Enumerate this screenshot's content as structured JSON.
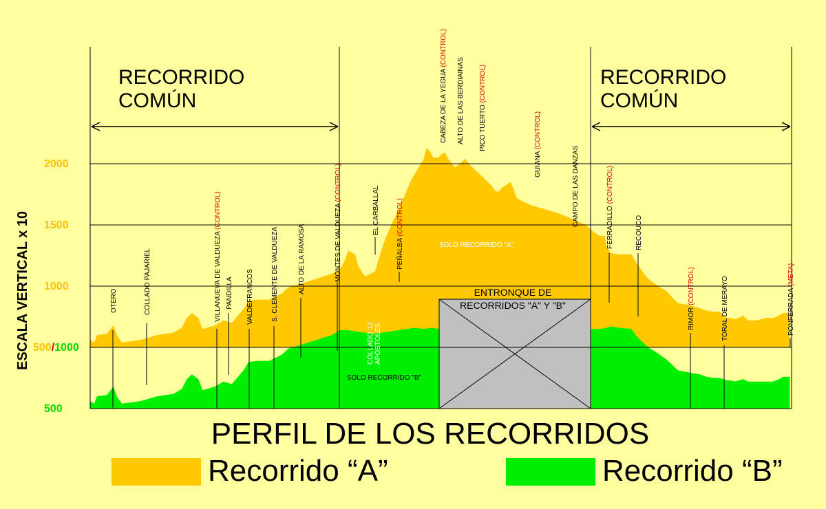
{
  "title": "PERFIL DE LOS RECORRIDOS",
  "ylabel": "ESCALA VERTICAL x 10",
  "section_common_1": "RECORRIDO COMÚN",
  "section_common_2": "RECORRIDO COMÚN",
  "center_labels": {
    "solo_a": "SOLO RECORRIDO \"A\"",
    "solo_b": "SOLO RECORRIDO \"B\"",
    "entronque_1": "ENTRONQUE DE",
    "entronque_2": "RECORRIDOS \"A\" Y \"B\"",
    "collado": [
      "COLLADO 12",
      "APÓSTOLES"
    ]
  },
  "ticks": [
    {
      "label": "2000",
      "color": "#FFC000"
    },
    {
      "label": "1500",
      "color": "#FFC000"
    },
    {
      "label": "1000",
      "color": "#FFC000"
    },
    {
      "label_a": "500",
      "sep": "/",
      "label_b": "1000",
      "color_a": "#FFC000",
      "color_sep": "#CC0000",
      "color_b": "#00DD00"
    },
    {
      "label": "500",
      "color": "#00DD00"
    }
  ],
  "legend": [
    {
      "label": "Recorrido “A”",
      "color": "#FFC800"
    },
    {
      "label": "Recorrido “B”",
      "color": "#00EE00"
    }
  ],
  "colors": {
    "route_a": "#FFC800",
    "route_b": "#00EE00",
    "entronque": "#C0C0C0",
    "control": "#E00000",
    "background": "#FFFFA0"
  },
  "points": [
    {
      "name": "OTERO",
      "note": ""
    },
    {
      "name": "COLLADO PAJARIEL",
      "note": ""
    },
    {
      "name": "VILLANUEVA DE VALDUEZA ",
      "note": "(CONTROL)"
    },
    {
      "name": "PANDILLA",
      "note": ""
    },
    {
      "name": "VALDEFRANCOS",
      "note": ""
    },
    {
      "name": "S. CLEMENTE DE VALDUEZA",
      "note": ""
    },
    {
      "name": "ALTO DE LA RAMOSA",
      "note": ""
    },
    {
      "name": "MONTES DE VALDUEZA ",
      "note": "(CONTROL)"
    },
    {
      "name": "EL CARBALLAL",
      "note": ""
    },
    {
      "name": "PEÑALBA ",
      "note": "(CONTROL)"
    },
    {
      "name": "CABEZA DE LA YEGUA ",
      "note": "(CONTROL)"
    },
    {
      "name": "ALTO DE LAS BERDIAINAS",
      "note": ""
    },
    {
      "name": "PICO TUERTO ",
      "note": "(CONTROL)"
    },
    {
      "name": "GUIANA ",
      "note": "(CONTROL)"
    },
    {
      "name": "CAMPO DE LAS DANZAS",
      "note": ""
    },
    {
      "name": "FERRADILLO ",
      "note": "(CONTROL)"
    },
    {
      "name": "RECOUCO",
      "note": ""
    },
    {
      "name": "RIMOR ",
      "note": "(CONTROL)"
    },
    {
      "name": "TORAL DE MERAYO",
      "note": ""
    },
    {
      "name": "PONFERRADA ",
      "note": "(META)"
    }
  ],
  "chart_data": {
    "type": "area",
    "title": "PERFIL DE LOS RECORRIDOS",
    "ylabel": "ESCALA VERTICAL x 10",
    "ylim_A": [
      500,
      2000
    ],
    "ylim_B_label": "500/1000",
    "series": [
      {
        "name": "Recorrido “A”",
        "values": [
          [
            0,
            560
          ],
          [
            5,
            540
          ],
          [
            8,
            600
          ],
          [
            20,
            610
          ],
          [
            28,
            680
          ],
          [
            32,
            600
          ],
          [
            38,
            540
          ],
          [
            60,
            560
          ],
          [
            80,
            600
          ],
          [
            100,
            620
          ],
          [
            110,
            660
          ],
          [
            116,
            740
          ],
          [
            122,
            780
          ],
          [
            130,
            740
          ],
          [
            135,
            650
          ],
          [
            150,
            680
          ],
          [
            160,
            720
          ],
          [
            170,
            700
          ],
          [
            180,
            780
          ],
          [
            185,
            820
          ],
          [
            190,
            880
          ],
          [
            200,
            890
          ],
          [
            215,
            890
          ],
          [
            230,
            940
          ],
          [
            238,
            990
          ],
          [
            248,
            1010
          ],
          [
            262,
            1040
          ],
          [
            272,
            1060
          ],
          [
            280,
            1080
          ],
          [
            290,
            1100
          ],
          [
            300,
            1140
          ],
          [
            305,
            1200
          ],
          [
            310,
            1290
          ],
          [
            318,
            1260
          ],
          [
            322,
            1160
          ],
          [
            330,
            1080
          ],
          [
            336,
            1100
          ],
          [
            342,
            1120
          ],
          [
            350,
            1300
          ],
          [
            355,
            1400
          ],
          [
            365,
            1550
          ],
          [
            375,
            1700
          ],
          [
            385,
            1860
          ],
          [
            395,
            1980
          ],
          [
            400,
            2030
          ],
          [
            404,
            2130
          ],
          [
            408,
            2100
          ],
          [
            412,
            2050
          ],
          [
            418,
            2050
          ],
          [
            422,
            2080
          ],
          [
            426,
            2090
          ],
          [
            430,
            2040
          ],
          [
            438,
            1970
          ],
          [
            444,
            2000
          ],
          [
            450,
            2040
          ],
          [
            456,
            1990
          ],
          [
            462,
            1950
          ],
          [
            470,
            1900
          ],
          [
            476,
            1860
          ],
          [
            482,
            1820
          ],
          [
            486,
            1780
          ],
          [
            490,
            1770
          ],
          [
            494,
            1800
          ],
          [
            500,
            1830
          ],
          [
            505,
            1850
          ],
          [
            508,
            1800
          ],
          [
            512,
            1720
          ],
          [
            520,
            1690
          ],
          [
            530,
            1660
          ],
          [
            545,
            1630
          ],
          [
            560,
            1600
          ],
          [
            575,
            1560
          ],
          [
            595,
            1500
          ],
          [
            605,
            1440
          ],
          [
            612,
            1410
          ],
          [
            618,
            1410
          ],
          [
            620,
            1320
          ],
          [
            625,
            1270
          ],
          [
            635,
            1260
          ],
          [
            650,
            1260
          ],
          [
            655,
            1200
          ],
          [
            662,
            1130
          ],
          [
            670,
            1060
          ],
          [
            682,
            1000
          ],
          [
            692,
            960
          ],
          [
            700,
            900
          ],
          [
            706,
            860
          ],
          [
            716,
            850
          ],
          [
            722,
            840
          ],
          [
            732,
            820
          ],
          [
            740,
            800
          ],
          [
            750,
            790
          ],
          [
            756,
            790
          ],
          [
            760,
            760
          ],
          [
            765,
            740
          ],
          [
            770,
            740
          ],
          [
            774,
            730
          ],
          [
            778,
            740
          ],
          [
            784,
            760
          ],
          [
            790,
            720
          ],
          [
            800,
            720
          ],
          [
            812,
            740
          ],
          [
            820,
            740
          ],
          [
            827,
            760
          ],
          [
            832,
            780
          ],
          [
            835,
            780
          ],
          [
            840,
            780
          ]
        ]
      },
      {
        "name": "Recorrido “B”",
        "values": [
          [
            0,
            560
          ],
          [
            5,
            540
          ],
          [
            8,
            600
          ],
          [
            20,
            610
          ],
          [
            28,
            680
          ],
          [
            32,
            600
          ],
          [
            38,
            540
          ],
          [
            60,
            560
          ],
          [
            80,
            600
          ],
          [
            100,
            620
          ],
          [
            110,
            660
          ],
          [
            116,
            740
          ],
          [
            122,
            780
          ],
          [
            130,
            740
          ],
          [
            135,
            650
          ],
          [
            150,
            680
          ],
          [
            160,
            720
          ],
          [
            170,
            700
          ],
          [
            180,
            780
          ],
          [
            185,
            820
          ],
          [
            190,
            880
          ],
          [
            200,
            890
          ],
          [
            215,
            890
          ],
          [
            230,
            940
          ],
          [
            238,
            990
          ],
          [
            248,
            1010
          ],
          [
            262,
            1040
          ],
          [
            272,
            1060
          ],
          [
            280,
            1080
          ],
          [
            290,
            1100
          ],
          [
            300,
            1140
          ],
          [
            310,
            1140
          ],
          [
            320,
            1130
          ],
          [
            330,
            1120
          ],
          [
            340,
            1110
          ],
          [
            350,
            1120
          ],
          [
            360,
            1130
          ],
          [
            370,
            1140
          ],
          [
            380,
            1150
          ],
          [
            390,
            1160
          ],
          [
            400,
            1150
          ],
          [
            410,
            1160
          ],
          [
            420,
            1150
          ],
          [
            430,
            1140
          ],
          [
            440,
            1140
          ],
          [
            460,
            1150
          ],
          [
            480,
            1140
          ],
          [
            500,
            1150
          ],
          [
            520,
            1140
          ],
          [
            540,
            1150
          ],
          [
            560,
            1150
          ],
          [
            580,
            1150
          ],
          [
            600,
            1150
          ],
          [
            612,
            1150
          ],
          [
            620,
            1160
          ],
          [
            625,
            1170
          ],
          [
            635,
            1160
          ],
          [
            650,
            1150
          ],
          [
            655,
            1100
          ],
          [
            662,
            1050
          ],
          [
            670,
            1000
          ],
          [
            682,
            950
          ],
          [
            692,
            900
          ],
          [
            700,
            850
          ],
          [
            706,
            810
          ],
          [
            716,
            800
          ],
          [
            722,
            790
          ],
          [
            732,
            780
          ],
          [
            740,
            760
          ],
          [
            750,
            750
          ],
          [
            756,
            750
          ],
          [
            760,
            740
          ],
          [
            765,
            730
          ],
          [
            770,
            730
          ],
          [
            774,
            720
          ],
          [
            778,
            730
          ],
          [
            784,
            740
          ],
          [
            790,
            720
          ],
          [
            800,
            720
          ],
          [
            812,
            720
          ],
          [
            820,
            720
          ],
          [
            827,
            740
          ],
          [
            832,
            760
          ],
          [
            835,
            760
          ],
          [
            840,
            760
          ]
        ]
      }
    ],
    "grid": true,
    "legend_position": "bottom"
  }
}
